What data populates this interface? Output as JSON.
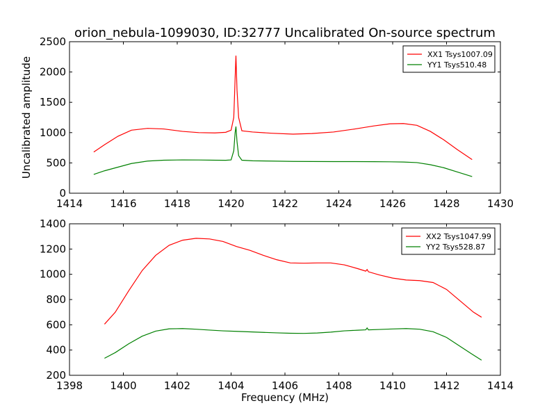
{
  "figure_title": "orion_nebula-1099030, ID:32777 Uncalibrated On-source spectrum",
  "ylabel": "Uncalibrated amplitude",
  "xlabel": "Frequency (MHz)",
  "chart_data": [
    {
      "type": "line",
      "title": "orion_nebula-1099030, ID:32777 Uncalibrated On-source spectrum",
      "xlabel": "",
      "ylabel": "Uncalibrated amplitude",
      "xlim": [
        1414,
        1430
      ],
      "ylim": [
        0,
        2500
      ],
      "xticks": [
        "1414",
        "1416",
        "1418",
        "1420",
        "1422",
        "1424",
        "1426",
        "1428",
        "1430"
      ],
      "yticks": [
        "0",
        "500",
        "1000",
        "1500",
        "2000",
        "2500"
      ],
      "grid": false,
      "legend_position": "top-right",
      "series": [
        {
          "name": "XX1 Tsys1007.09",
          "color": "#ff0000",
          "x": [
            1414.9,
            1415.3,
            1415.8,
            1416.3,
            1416.9,
            1417.5,
            1418.2,
            1418.8,
            1419.4,
            1419.8,
            1420.0,
            1420.1,
            1420.15,
            1420.18,
            1420.22,
            1420.28,
            1420.4,
            1420.8,
            1421.5,
            1422.3,
            1423.0,
            1423.8,
            1424.6,
            1425.3,
            1425.9,
            1426.4,
            1426.9,
            1427.4,
            1427.9,
            1428.4,
            1428.95
          ],
          "y": [
            680,
            800,
            940,
            1040,
            1070,
            1060,
            1020,
            1000,
            995,
            1005,
            1040,
            1250,
            1900,
            2270,
            1700,
            1250,
            1030,
            1010,
            990,
            975,
            985,
            1010,
            1060,
            1110,
            1145,
            1150,
            1120,
            1020,
            880,
            720,
            555
          ]
        },
        {
          "name": "YY1 Tsys510.48",
          "color": "#008000",
          "x": [
            1414.9,
            1415.3,
            1415.8,
            1416.3,
            1416.9,
            1417.5,
            1418.2,
            1418.8,
            1419.4,
            1419.8,
            1420.0,
            1420.1,
            1420.15,
            1420.18,
            1420.22,
            1420.28,
            1420.4,
            1420.8,
            1421.5,
            1422.3,
            1423.0,
            1423.8,
            1424.6,
            1425.3,
            1425.9,
            1426.4,
            1426.9,
            1427.4,
            1427.9,
            1428.4,
            1428.95
          ],
          "y": [
            310,
            370,
            430,
            490,
            530,
            545,
            550,
            548,
            545,
            543,
            550,
            700,
            1000,
            1100,
            850,
            620,
            545,
            535,
            530,
            525,
            523,
            522,
            522,
            520,
            518,
            515,
            505,
            470,
            420,
            350,
            275
          ]
        }
      ]
    },
    {
      "type": "line",
      "title": "",
      "xlabel": "Frequency (MHz)",
      "ylabel": "",
      "xlim": [
        1398,
        1414
      ],
      "ylim": [
        200,
        1400
      ],
      "xticks": [
        "1398",
        "1400",
        "1402",
        "1404",
        "1406",
        "1408",
        "1410",
        "1412",
        "1414"
      ],
      "yticks": [
        "200",
        "400",
        "600",
        "800",
        "1000",
        "1200",
        "1400"
      ],
      "grid": false,
      "legend_position": "top-right",
      "series": [
        {
          "name": "XX2 Tsys1047.99",
          "color": "#ff0000",
          "x": [
            1399.3,
            1399.7,
            1400.2,
            1400.7,
            1401.2,
            1401.7,
            1402.2,
            1402.7,
            1403.2,
            1403.7,
            1404.2,
            1404.7,
            1405.2,
            1405.7,
            1406.2,
            1406.7,
            1407.2,
            1407.7,
            1408.2,
            1408.7,
            1409.0,
            1409.05,
            1409.1,
            1409.5,
            1410.0,
            1410.5,
            1411.0,
            1411.5,
            1412.0,
            1412.5,
            1413.0,
            1413.3
          ],
          "y": [
            605,
            700,
            870,
            1030,
            1150,
            1230,
            1270,
            1285,
            1280,
            1260,
            1220,
            1190,
            1150,
            1115,
            1090,
            1088,
            1090,
            1090,
            1075,
            1045,
            1025,
            1038,
            1020,
            995,
            970,
            955,
            950,
            935,
            880,
            790,
            700,
            660
          ]
        },
        {
          "name": "YY2 Tsys528.87",
          "color": "#008000",
          "x": [
            1399.3,
            1399.7,
            1400.2,
            1400.7,
            1401.2,
            1401.7,
            1402.2,
            1402.7,
            1403.2,
            1403.7,
            1404.2,
            1404.7,
            1405.2,
            1405.7,
            1406.2,
            1406.7,
            1407.2,
            1407.7,
            1408.2,
            1408.7,
            1409.0,
            1409.05,
            1409.1,
            1409.5,
            1410.0,
            1410.5,
            1411.0,
            1411.5,
            1412.0,
            1412.5,
            1413.0,
            1413.3
          ],
          "y": [
            335,
            380,
            450,
            510,
            550,
            568,
            570,
            565,
            558,
            552,
            548,
            544,
            540,
            536,
            533,
            532,
            535,
            542,
            552,
            557,
            560,
            575,
            560,
            563,
            567,
            570,
            565,
            545,
            500,
            430,
            360,
            320
          ]
        }
      ]
    }
  ]
}
